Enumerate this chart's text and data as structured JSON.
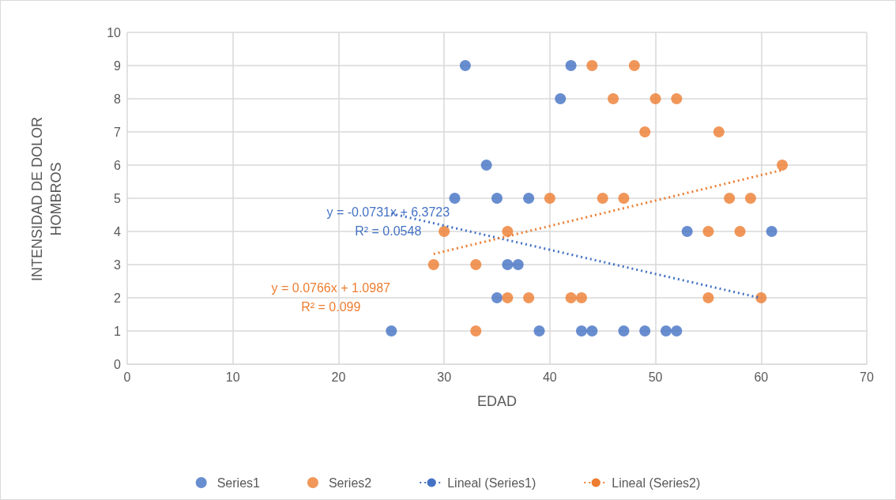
{
  "chart_data": {
    "type": "scatter",
    "xlabel": "EDAD",
    "ylabel": "INTENSIDAD DE DOLOR HOMBROS",
    "xlim": [
      0,
      70
    ],
    "xticks": [
      0,
      10,
      20,
      30,
      40,
      50,
      60,
      70
    ],
    "ylim": [
      0,
      10
    ],
    "yticks": [
      0,
      1,
      2,
      3,
      4,
      5,
      6,
      7,
      8,
      9,
      10
    ],
    "grid": true,
    "legend": "bottom",
    "marker": "circle",
    "series": [
      {
        "name": "Series1",
        "color": "#4472c4",
        "x": [
          25,
          32,
          42,
          41,
          34,
          31,
          35,
          38,
          36,
          37,
          35,
          39,
          43,
          44,
          47,
          49,
          51,
          52,
          53,
          61
        ],
        "values": [
          1,
          9,
          9,
          8,
          6,
          5,
          5,
          5,
          3,
          3,
          2,
          1,
          1,
          1,
          1,
          1,
          1,
          1,
          4,
          4
        ]
      },
      {
        "name": "Series2",
        "color": "#ed7d31",
        "x": [
          44,
          48,
          46,
          50,
          52,
          49,
          56,
          62,
          40,
          45,
          47,
          57,
          59,
          30,
          36,
          55,
          58,
          29,
          33,
          36,
          38,
          42,
          43,
          55,
          60,
          33
        ],
        "values": [
          9,
          9,
          8,
          8,
          8,
          7,
          7,
          6,
          5,
          5,
          5,
          5,
          5,
          4,
          4,
          4,
          4,
          3,
          3,
          2,
          2,
          2,
          2,
          2,
          2,
          1
        ]
      },
      {
        "name": "Lineal (Series1)",
        "type": "line",
        "color": "#4472c4",
        "marker": "none",
        "line_style": "dotted",
        "x": [
          25,
          60
        ],
        "values": [
          4.54,
          1.99
        ]
      },
      {
        "name": "Lineal (Series2)",
        "type": "line",
        "color": "#ed7d31",
        "marker": "none",
        "line_style": "dotted",
        "x": [
          29,
          62
        ],
        "values": [
          3.32,
          5.85
        ]
      }
    ],
    "annotations": [
      "y = -0.0731x + 6.3723\nR² = 0.0548",
      "y = 0.0766x + 1.0987\nR² = 0.099"
    ]
  }
}
